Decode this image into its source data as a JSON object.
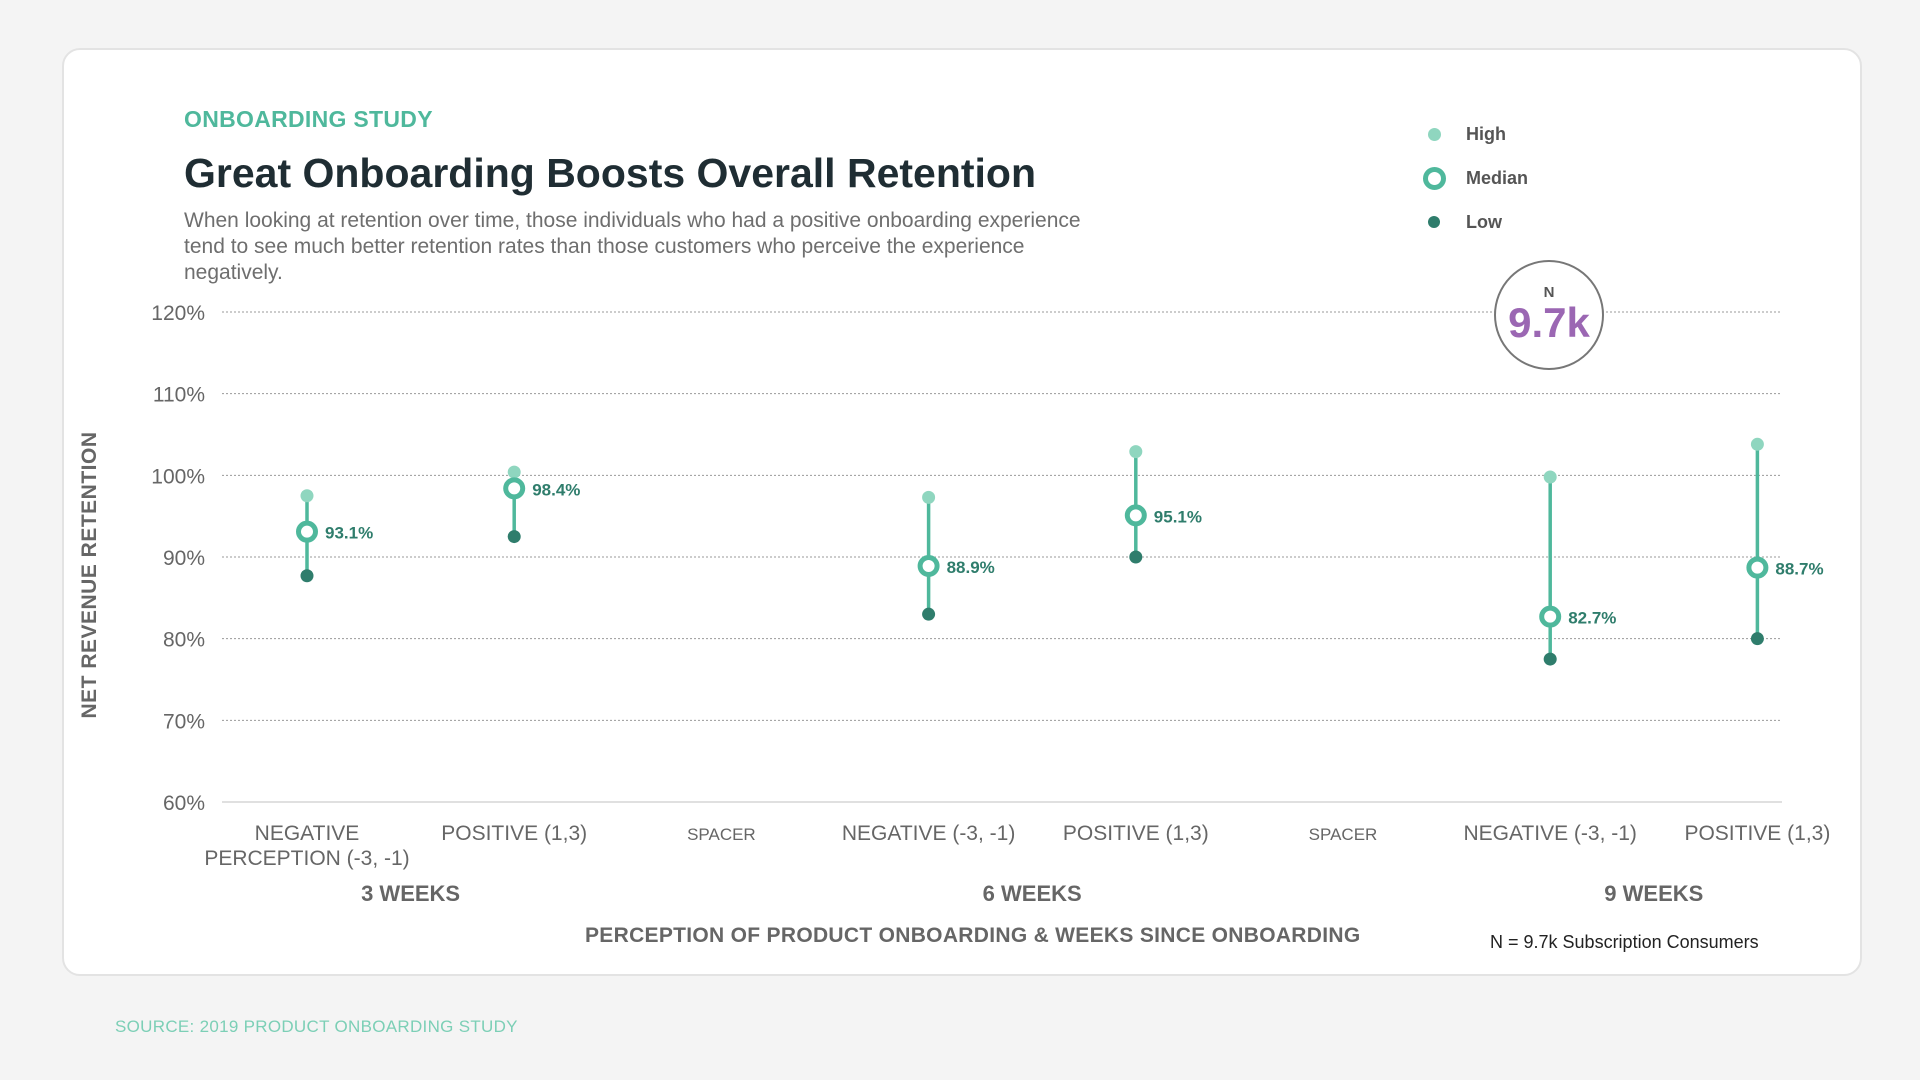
{
  "header": {
    "eyebrow": "ONBOARDING STUDY",
    "title": "Great Onboarding Boosts Overall Retention",
    "subtitle": "When looking at retention over time, those individuals who had a positive onboarding experience tend to see much better retention rates than those customers who perceive the experience negatively."
  },
  "legend": {
    "high": "High",
    "median": "Median",
    "low": "Low"
  },
  "badge": {
    "label": "N",
    "value": "9.7k"
  },
  "note": "N = 9.7k Subscription Consumers",
  "source": "SOURCE: 2019 PRODUCT ONBOARDING STUDY",
  "colors": {
    "accent": "#4fb89c",
    "high": "#8fd6bf",
    "low": "#2f7d6c",
    "badge_value": "#9b67b3",
    "title": "#1f2d33"
  },
  "chart_data": {
    "type": "range-dot",
    "xlabel": "PERCEPTION OF PRODUCT ONBOARDING & WEEKS SINCE ONBOARDING",
    "ylabel": "NET REVENUE RETENTION",
    "ylim": [
      60,
      120
    ],
    "yticks": [
      60,
      70,
      80,
      90,
      100,
      110,
      120
    ],
    "ytick_labels": [
      "60%",
      "70%",
      "80%",
      "90%",
      "100%",
      "110%",
      "120%"
    ],
    "grid": true,
    "categories": [
      [
        "NEGATIVE",
        "PERCEPTION (-3, -1)"
      ],
      [
        "POSITIVE (1,3)"
      ],
      [
        "SPACER"
      ],
      [
        "NEGATIVE (-3, -1)"
      ],
      [
        "POSITIVE (1,3)"
      ],
      [
        "SPACER"
      ],
      [
        "NEGATIVE (-3, -1)"
      ],
      [
        "POSITIVE (1,3)"
      ]
    ],
    "groups": [
      {
        "label": "3 WEEKS",
        "span": [
          0,
          1
        ]
      },
      {
        "label": "6 WEEKS",
        "span": [
          3,
          4
        ]
      },
      {
        "label": "9 WEEKS",
        "span": [
          6,
          7
        ]
      }
    ],
    "points": [
      {
        "index": 0,
        "high": 97.5,
        "median": 93.1,
        "low": 87.7,
        "label": "93.1%"
      },
      {
        "index": 1,
        "high": 100.4,
        "median": 98.4,
        "low": 92.5,
        "label": "98.4%"
      },
      {
        "index": 3,
        "high": 97.3,
        "median": 88.9,
        "low": 83.0,
        "label": "88.9%"
      },
      {
        "index": 4,
        "high": 102.9,
        "median": 95.1,
        "low": 90.0,
        "label": "95.1%"
      },
      {
        "index": 6,
        "high": 99.8,
        "median": 82.7,
        "low": 77.5,
        "label": "82.7%"
      },
      {
        "index": 7,
        "high": 103.8,
        "median": 88.7,
        "low": 80.0,
        "label": "88.7%"
      }
    ]
  }
}
